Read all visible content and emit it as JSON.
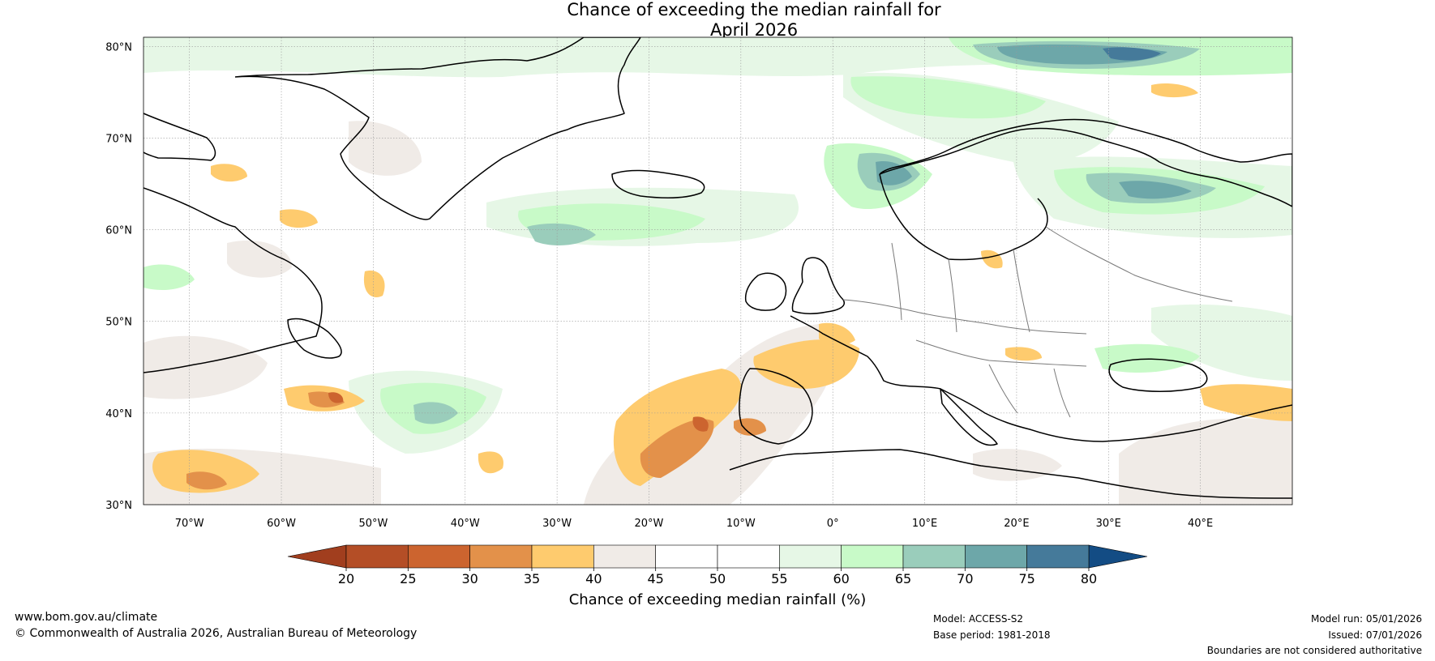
{
  "title": {
    "line1": "Chance of exceeding the median rainfall for",
    "line2": "April 2026"
  },
  "map": {
    "region": "North Atlantic and Europe",
    "lon_range": [
      -75,
      50
    ],
    "lat_range": [
      30,
      81
    ],
    "lat_ticks": [
      {
        "value": 80,
        "label": "80°N"
      },
      {
        "value": 70,
        "label": "70°N"
      },
      {
        "value": 60,
        "label": "60°N"
      },
      {
        "value": 50,
        "label": "50°N"
      },
      {
        "value": 40,
        "label": "40°N"
      },
      {
        "value": 30,
        "label": "30°N"
      }
    ],
    "lon_ticks": [
      {
        "value": -70,
        "label": "70°W"
      },
      {
        "value": -60,
        "label": "60°W"
      },
      {
        "value": -50,
        "label": "50°W"
      },
      {
        "value": -40,
        "label": "40°W"
      },
      {
        "value": -30,
        "label": "30°W"
      },
      {
        "value": -20,
        "label": "20°W"
      },
      {
        "value": -10,
        "label": "10°W"
      },
      {
        "value": 0,
        "label": "0°"
      },
      {
        "value": 10,
        "label": "10°E"
      },
      {
        "value": 20,
        "label": "20°E"
      },
      {
        "value": 30,
        "label": "30°E"
      },
      {
        "value": 40,
        "label": "40°E"
      }
    ]
  },
  "colorbar": {
    "label": "Chance of exceeding median rainfall (%)",
    "ticks": [
      "20",
      "25",
      "30",
      "35",
      "40",
      "45",
      "50",
      "55",
      "60",
      "65",
      "70",
      "75",
      "80"
    ],
    "colors": [
      "#a13e1e",
      "#b44e26",
      "#cc642f",
      "#e3914a",
      "#fecb6e",
      "#f0ebe7",
      "#ffffff",
      "#ffffff",
      "#e6f7e6",
      "#c8fac8",
      "#9acdbb",
      "#6da7a9",
      "#457a9a",
      "#134c84"
    ],
    "under_color": "#a13e1e",
    "over_color": "#134c84"
  },
  "footer": {
    "website": "www.bom.gov.au/climate",
    "copyright": "© Commonwealth of Australia 2026, Australian Bureau of Meteorology",
    "model": "Model: ACCESS-S2",
    "base_period": "Base period: 1981-2018",
    "model_run": "Model run: 05/01/2026",
    "issued": "Issued: 07/01/2026",
    "disclaimer": "Boundaries are not considered authoritative"
  }
}
